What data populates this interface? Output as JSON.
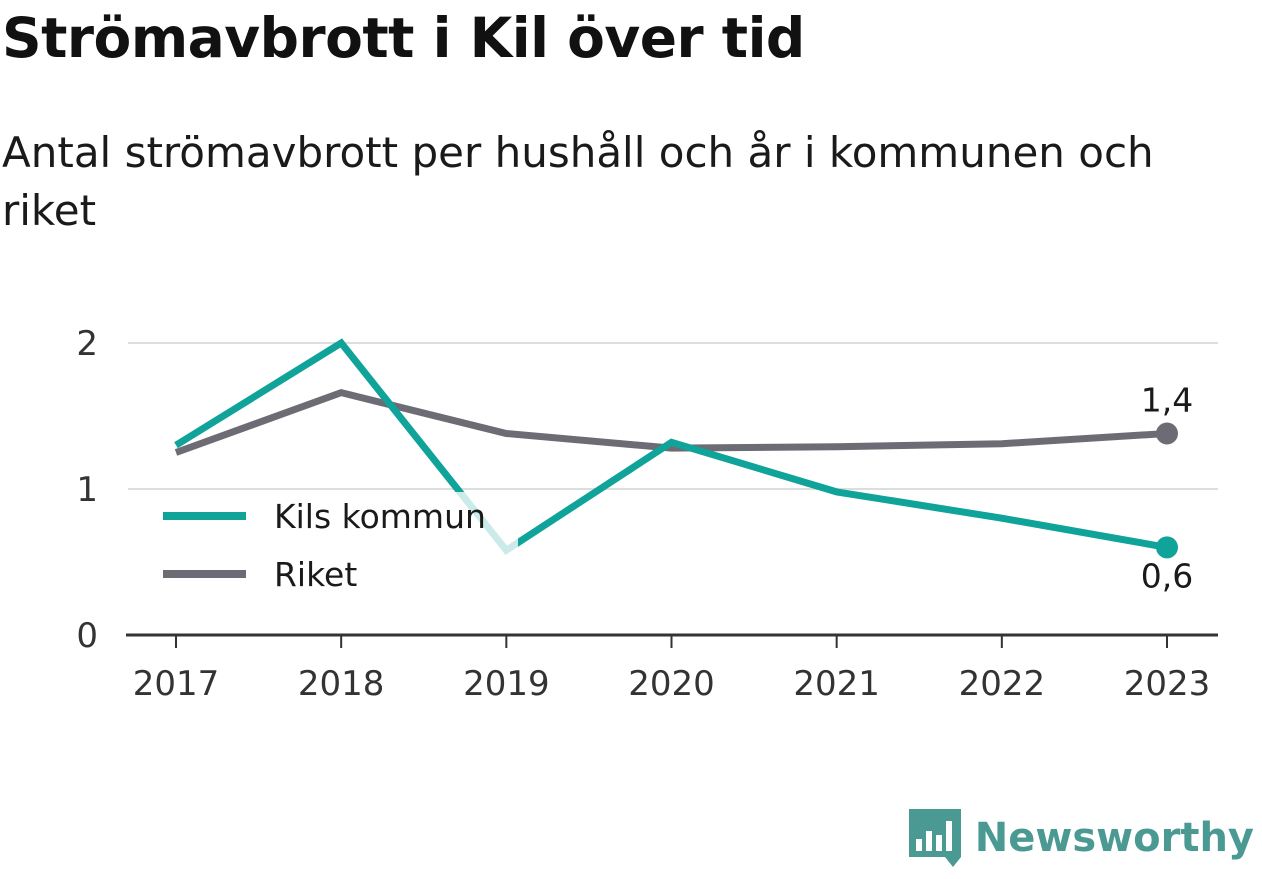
{
  "title": "Strömavbrott i Kil över tid",
  "subtitle": "Antal strömavbrott per hushåll och år i kommunen och riket",
  "brand": {
    "name": "Newsworthy",
    "icon": "newsworthy-logo-icon",
    "color": "#4a9a93"
  },
  "chart_data": {
    "type": "line",
    "title": "Strömavbrott i Kil över tid",
    "subtitle": "Antal strömavbrott per hushåll och år i kommunen och riket",
    "xlabel": "",
    "ylabel": "",
    "x": [
      "2017",
      "2018",
      "2019",
      "2020",
      "2021",
      "2022",
      "2023"
    ],
    "ylim": [
      0,
      2
    ],
    "yticks": [
      "0",
      "1",
      "2"
    ],
    "grid": true,
    "legend": "middle-left",
    "series": [
      {
        "name": "Kils kommun",
        "color": "#0fa39a",
        "values": [
          1.3,
          2.0,
          0.58,
          1.32,
          0.98,
          0.8,
          0.6
        ],
        "end_label": "0,6"
      },
      {
        "name": "Riket",
        "color": "#6d6c74",
        "values": [
          1.25,
          1.66,
          1.38,
          1.28,
          1.29,
          1.31,
          1.38
        ],
        "end_label": "1,4"
      }
    ]
  }
}
